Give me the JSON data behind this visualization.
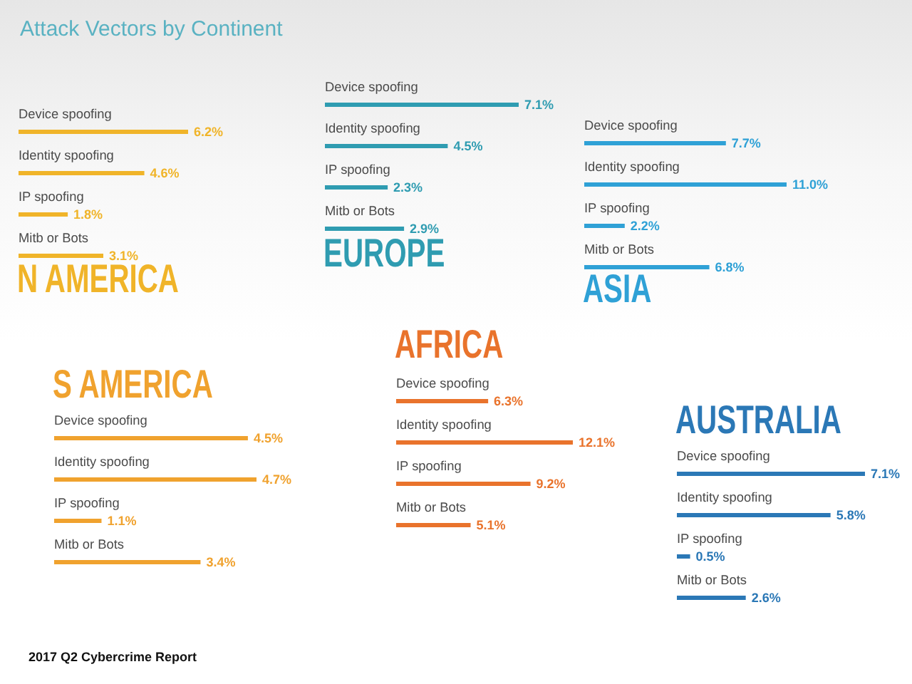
{
  "chart_data": [
    {
      "type": "other",
      "title": "Attack Vectors by Continent"
    },
    {
      "type": "bar",
      "orientation": "horizontal",
      "title": "N AMERICA",
      "categories": [
        "Device spoofing",
        "Identity spoofing",
        "IP spoofing",
        "Mitb or Bots"
      ],
      "values": [
        6.2,
        4.6,
        1.8,
        3.1
      ],
      "value_labels": [
        "6.2%",
        "4.6%",
        "1.8%",
        "3.1%"
      ],
      "color": "#f0b429"
    },
    {
      "type": "bar",
      "orientation": "horizontal",
      "title": "EUROPE",
      "categories": [
        "Device spoofing",
        "Identity spoofing",
        "IP spoofing",
        "Mitb or Bots"
      ],
      "values": [
        7.1,
        4.5,
        2.3,
        2.9
      ],
      "value_labels": [
        "7.1%",
        "4.5%",
        "2.3%",
        "2.9%"
      ],
      "color": "#2f9cb1"
    },
    {
      "type": "bar",
      "orientation": "horizontal",
      "title": "ASIA",
      "categories": [
        "Device spoofing",
        "Identity spoofing",
        "IP spoofing",
        "Mitb or Bots"
      ],
      "values": [
        7.7,
        11.0,
        2.2,
        6.8
      ],
      "value_labels": [
        "7.7%",
        "11.0%",
        "2.2%",
        "6.8%"
      ],
      "color": "#2fa1d6"
    },
    {
      "type": "bar",
      "orientation": "horizontal",
      "title": "S AMERICA",
      "categories": [
        "Device spoofing",
        "Identity spoofing",
        "IP spoofing",
        "Mitb or Bots"
      ],
      "values": [
        4.5,
        4.7,
        1.1,
        3.4
      ],
      "value_labels": [
        "4.5%",
        "4.7%",
        "1.1%",
        "3.4%"
      ],
      "color": "#f0a22e"
    },
    {
      "type": "bar",
      "orientation": "horizontal",
      "title": "AFRICA",
      "categories": [
        "Device spoofing",
        "Identity spoofing",
        "IP spoofing",
        "Mitb or Bots"
      ],
      "values": [
        6.3,
        12.1,
        9.2,
        5.1
      ],
      "value_labels": [
        "6.3%",
        "12.1%",
        "9.2%",
        "5.1%"
      ],
      "color": "#e9732c"
    },
    {
      "type": "bar",
      "orientation": "horizontal",
      "title": "AUSTRALIA",
      "categories": [
        "Device spoofing",
        "Identity spoofing",
        "IP spoofing",
        "Mitb or Bots"
      ],
      "values": [
        7.1,
        5.8,
        0.5,
        2.6
      ],
      "value_labels": [
        "7.1%",
        "5.8%",
        "0.5%",
        "2.6%"
      ],
      "color": "#2b78b6"
    },
    {
      "type": "other",
      "annotations": [
        "2017 Q2 Cybercrime Report"
      ]
    }
  ]
}
